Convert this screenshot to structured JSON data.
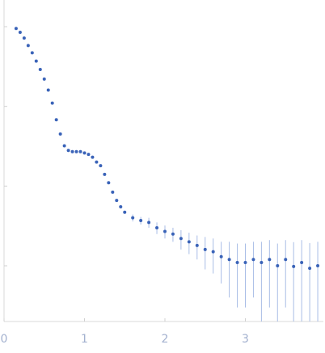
{
  "chart_data": {
    "type": "scatter",
    "log_y": true,
    "color": "#3a63b8",
    "error_color": "#a9bde6",
    "x": [
      0.15,
      0.2,
      0.25,
      0.3,
      0.35,
      0.4,
      0.45,
      0.5,
      0.55,
      0.6,
      0.65,
      0.7,
      0.75,
      0.8,
      0.85,
      0.9,
      0.95,
      1.0,
      1.05,
      1.1,
      1.15,
      1.2,
      1.25,
      1.3,
      1.35,
      1.4,
      1.45,
      1.5,
      1.6,
      1.7,
      1.8,
      1.9,
      2.0,
      2.1,
      2.2,
      2.3,
      2.4,
      2.5,
      2.6,
      2.7,
      2.8,
      2.9,
      3.0,
      3.1,
      3.2,
      3.3,
      3.4,
      3.5,
      3.6,
      3.7,
      3.8,
      3.9
    ],
    "values": [
      0.95,
      0.85,
      0.72,
      0.58,
      0.47,
      0.37,
      0.29,
      0.22,
      0.16,
      0.11,
      0.068,
      0.045,
      0.032,
      0.028,
      0.027,
      0.027,
      0.027,
      0.026,
      0.025,
      0.023,
      0.02,
      0.018,
      0.014,
      0.011,
      0.0084,
      0.0066,
      0.0055,
      0.0047,
      0.004,
      0.0037,
      0.0035,
      0.003,
      0.0027,
      0.0025,
      0.0022,
      0.002,
      0.0018,
      0.0016,
      0.0015,
      0.0013,
      0.0012,
      0.0011,
      0.0011,
      0.0012,
      0.0011,
      0.0012,
      0.001,
      0.0012,
      0.00098,
      0.0011,
      0.00093,
      0.001
    ],
    "errors": [
      0.0002,
      0.0002,
      0.0002,
      0.0002,
      0.0002,
      0.0002,
      0.0002,
      0.0002,
      0.0002,
      0.0002,
      0.0002,
      0.0002,
      0.0002,
      0.0002,
      0.0002,
      0.0002,
      0.0002,
      0.0002,
      0.0002,
      0.0002,
      0.0002,
      0.0002,
      0.0002,
      0.0002,
      0.0002,
      0.0002,
      0.0002,
      0.0002,
      0.0004,
      0.0004,
      0.0005,
      0.0005,
      0.0005,
      0.0005,
      0.0006,
      0.0006,
      0.0006,
      0.0007,
      0.0007,
      0.0007,
      0.0008,
      0.0008,
      0.0008,
      0.0008,
      0.0009,
      0.0009,
      0.0009,
      0.0009,
      0.001,
      0.001,
      0.001,
      0.001
    ],
    "xlim": [
      0,
      3.97
    ],
    "xticks": [
      0,
      1,
      2,
      3
    ],
    "ylim": [
      0.0002,
      2.16
    ],
    "yticks": [
      1,
      0.1,
      0.01,
      0.001
    ]
  }
}
